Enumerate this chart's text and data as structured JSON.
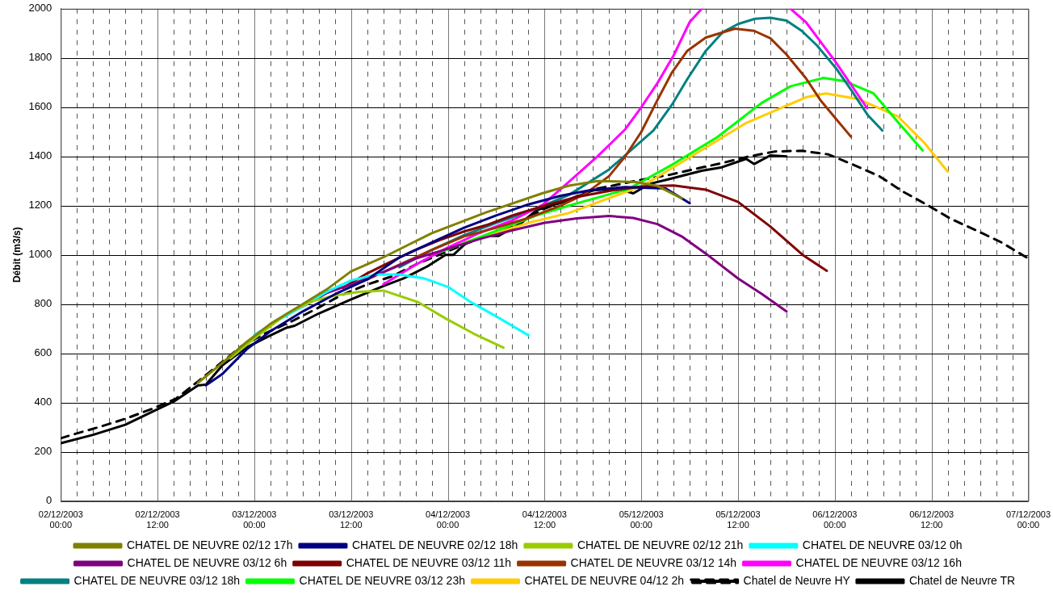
{
  "chart_data": {
    "type": "line",
    "ylabel": "Débit (m3/s)",
    "xlim": [
      "2003-12-02T00:00",
      "2003-12-07T00:00"
    ],
    "ylim": [
      0,
      2000
    ],
    "xticks": [
      {
        "value": "2003-12-02T00:00",
        "label": "02/12/2003 00:00"
      },
      {
        "value": "2003-12-02T02:00",
        "label": null
      },
      {
        "value": "2003-12-02T04:00",
        "label": null
      },
      {
        "value": "2003-12-02T06:00",
        "label": null
      },
      {
        "value": "2003-12-02T08:00",
        "label": null
      },
      {
        "value": "2003-12-02T10:00",
        "label": null
      },
      {
        "value": "2003-12-02T12:00",
        "label": "02/12/2003 12:00"
      },
      {
        "value": "2003-12-02T14:00",
        "label": null
      },
      {
        "value": "2003-12-02T16:00",
        "label": null
      },
      {
        "value": "2003-12-02T18:00",
        "label": null
      },
      {
        "value": "2003-12-02T20:00",
        "label": null
      },
      {
        "value": "2003-12-02T22:00",
        "label": null
      },
      {
        "value": "2003-12-03T00:00",
        "label": "03/12/2003 00:00"
      },
      {
        "value": "2003-12-03T02:00",
        "label": null
      },
      {
        "value": "2003-12-03T04:00",
        "label": null
      },
      {
        "value": "2003-12-03T06:00",
        "label": null
      },
      {
        "value": "2003-12-03T08:00",
        "label": null
      },
      {
        "value": "2003-12-03T10:00",
        "label": null
      },
      {
        "value": "2003-12-03T12:00",
        "label": "03/12/2003 12:00"
      },
      {
        "value": "2003-12-03T14:00",
        "label": null
      },
      {
        "value": "2003-12-03T16:00",
        "label": null
      },
      {
        "value": "2003-12-03T18:00",
        "label": null
      },
      {
        "value": "2003-12-03T20:00",
        "label": null
      },
      {
        "value": "2003-12-03T22:00",
        "label": null
      },
      {
        "value": "2003-12-04T00:00",
        "label": "04/12/2003 00:00"
      },
      {
        "value": "2003-12-04T02:00",
        "label": null
      },
      {
        "value": "2003-12-04T04:00",
        "label": null
      },
      {
        "value": "2003-12-04T06:00",
        "label": null
      },
      {
        "value": "2003-12-04T08:00",
        "label": null
      },
      {
        "value": "2003-12-04T10:00",
        "label": null
      },
      {
        "value": "2003-12-04T12:00",
        "label": "04/12/2003 12:00"
      },
      {
        "value": "2003-12-04T14:00",
        "label": null
      },
      {
        "value": "2003-12-04T16:00",
        "label": null
      },
      {
        "value": "2003-12-04T18:00",
        "label": null
      },
      {
        "value": "2003-12-04T20:00",
        "label": null
      },
      {
        "value": "2003-12-04T22:00",
        "label": null
      },
      {
        "value": "2003-12-05T00:00",
        "label": "05/12/2003 00:00"
      },
      {
        "value": "2003-12-05T02:00",
        "label": null
      },
      {
        "value": "2003-12-05T04:00",
        "label": null
      },
      {
        "value": "2003-12-05T06:00",
        "label": null
      },
      {
        "value": "2003-12-05T08:00",
        "label": null
      },
      {
        "value": "2003-12-05T10:00",
        "label": null
      },
      {
        "value": "2003-12-05T12:00",
        "label": "05/12/2003 12:00"
      },
      {
        "value": "2003-12-05T14:00",
        "label": null
      },
      {
        "value": "2003-12-05T16:00",
        "label": null
      },
      {
        "value": "2003-12-05T18:00",
        "label": null
      },
      {
        "value": "2003-12-05T20:00",
        "label": null
      },
      {
        "value": "2003-12-05T22:00",
        "label": null
      },
      {
        "value": "2003-12-06T00:00",
        "label": "06/12/2003 00:00"
      },
      {
        "value": "2003-12-06T02:00",
        "label": null
      },
      {
        "value": "2003-12-06T04:00",
        "label": null
      },
      {
        "value": "2003-12-06T06:00",
        "label": null
      },
      {
        "value": "2003-12-06T08:00",
        "label": null
      },
      {
        "value": "2003-12-06T10:00",
        "label": null
      },
      {
        "value": "2003-12-06T12:00",
        "label": "06/12/2003 12:00"
      },
      {
        "value": "2003-12-06T14:00",
        "label": null
      },
      {
        "value": "2003-12-06T16:00",
        "label": null
      },
      {
        "value": "2003-12-06T18:00",
        "label": null
      },
      {
        "value": "2003-12-06T20:00",
        "label": null
      },
      {
        "value": "2003-12-06T22:00",
        "label": null
      },
      {
        "value": "2003-12-07T00:00",
        "label": "07/12/2003 00:00"
      }
    ],
    "yticks": [
      0,
      200,
      400,
      600,
      800,
      1000,
      1200,
      1400,
      1600,
      1800,
      2000
    ],
    "grid": true,
    "legend": "bottom",
    "series": [
      {
        "name": "CHATEL DE NEUVRE 02/12 17h",
        "color": "#808000",
        "x": [
          "2003-12-02T17:00",
          "2003-12-02T20:00",
          "2003-12-02T23:00",
          "2003-12-03T02:00",
          "2003-12-03T06:00",
          "2003-12-03T09:00",
          "2003-12-03T12:00",
          "2003-12-03T16:00",
          "2003-12-03T22:00",
          "2003-12-04T04:48",
          "2003-12-04T11:42",
          "2003-12-04T15:00",
          "2003-12-04T18:36",
          "2003-12-04T23:18",
          "2003-12-05T02:00",
          "2003-12-05T05:00"
        ],
        "values": [
          480,
          560,
          645,
          720,
          800,
          860,
          933,
          990,
          1088,
          1173,
          1250,
          1281,
          1300,
          1296,
          1280,
          1230
        ]
      },
      {
        "name": "CHATEL DE NEUVRE 02/12 18h",
        "color": "#000080",
        "x": [
          "2003-12-02T18:00",
          "2003-12-02T20:00",
          "2003-12-02T23:00",
          "2003-12-03T02:00",
          "2003-12-03T06:00",
          "2003-12-03T10:00",
          "2003-12-03T14:00",
          "2003-12-03T18:00",
          "2003-12-03T22:00",
          "2003-12-04T02:00",
          "2003-12-04T06:00",
          "2003-12-04T10:00",
          "2003-12-04T14:00",
          "2003-12-04T18:00",
          "2003-12-04T22:00",
          "2003-12-05T03:00",
          "2003-12-05T06:00"
        ],
        "values": [
          470,
          515,
          615,
          690,
          770,
          840,
          900,
          990,
          1050,
          1110,
          1160,
          1205,
          1240,
          1265,
          1275,
          1270,
          1210
        ]
      },
      {
        "name": "CHATEL DE NEUVRE 02/12 21h",
        "color": "#99cc00",
        "x": [
          "2003-12-02T21:00",
          "2003-12-03T00:00",
          "2003-12-03T04:00",
          "2003-12-03T07:00",
          "2003-12-03T10:00",
          "2003-12-03T13:00",
          "2003-12-03T16:00",
          "2003-12-03T20:18",
          "2003-12-03T23:42",
          "2003-12-04T03:12",
          "2003-12-04T06:54"
        ],
        "values": [
          580,
          660,
          760,
          810,
          835,
          850,
          855,
          808,
          742,
          680,
          623
        ]
      },
      {
        "name": "CHATEL DE NEUVRE 03/12 0h",
        "color": "#00ffff",
        "x": [
          "2003-12-03T00:00",
          "2003-12-03T03:00",
          "2003-12-03T06:00",
          "2003-12-03T09:00",
          "2003-12-03T12:00",
          "2003-12-03T15:00",
          "2003-12-03T18:00",
          "2003-12-03T21:00",
          "2003-12-04T00:00",
          "2003-12-04T03:00",
          "2003-12-04T06:00",
          "2003-12-04T10:00"
        ],
        "values": [
          675,
          735,
          790,
          850,
          896,
          920,
          920,
          905,
          870,
          805,
          750,
          673
        ]
      },
      {
        "name": "CHATEL DE NEUVRE 03/12 6h",
        "color": "#800080",
        "x": [
          "2003-12-03T06:00",
          "2003-12-03T09:00",
          "2003-12-03T12:00",
          "2003-12-03T16:00",
          "2003-12-03T20:00",
          "2003-12-04T00:00",
          "2003-12-04T04:00",
          "2003-12-04T08:00",
          "2003-12-04T12:00",
          "2003-12-04T16:00",
          "2003-12-04T20:00",
          "2003-12-04T23:00",
          "2003-12-05T02:00",
          "2003-12-05T05:00",
          "2003-12-05T08:00",
          "2003-12-05T12:00",
          "2003-12-05T15:00",
          "2003-12-05T18:00"
        ],
        "values": [
          790,
          845,
          880,
          930,
          985,
          1025,
          1065,
          1100,
          1130,
          1148,
          1158,
          1150,
          1125,
          1075,
          1005,
          904,
          840,
          770
        ]
      },
      {
        "name": "CHATEL DE NEUVRE 03/12 11h",
        "color": "#800000",
        "x": [
          "2003-12-03T11:00",
          "2003-12-03T14:00",
          "2003-12-03T17:00",
          "2003-12-03T20:00",
          "2003-12-03T23:00",
          "2003-12-04T02:00",
          "2003-12-04T05:00",
          "2003-12-04T08:00",
          "2003-12-04T12:00",
          "2003-12-04T16:00",
          "2003-12-04T20:00",
          "2003-12-05T00:00",
          "2003-12-05T04:00",
          "2003-12-05T08:00",
          "2003-12-05T12:00",
          "2003-12-05T16:00",
          "2003-12-05T20:00",
          "2003-12-05T23:00"
        ],
        "values": [
          866,
          925,
          973,
          1020,
          1060,
          1095,
          1123,
          1160,
          1200,
          1235,
          1260,
          1278,
          1282,
          1265,
          1215,
          1115,
          1000,
          935
        ]
      },
      {
        "name": "CHATEL DE NEUVRE 03/12 14h",
        "color": "#993300",
        "x": [
          "2003-12-03T14:00",
          "2003-12-03T18:00",
          "2003-12-03T22:00",
          "2003-12-04T02:00",
          "2003-12-04T06:00",
          "2003-12-04T10:00",
          "2003-12-04T14:00",
          "2003-12-04T17:00",
          "2003-12-04T20:00",
          "2003-12-04T22:00",
          "2003-12-05T00:00",
          "2003-12-05T02:00",
          "2003-12-05T03:48",
          "2003-12-05T05:42",
          "2003-12-05T08:00",
          "2003-12-05T11:36",
          "2003-12-05T14:00",
          "2003-12-05T16:00",
          "2003-12-05T18:00",
          "2003-12-05T20:24",
          "2003-12-05T22:12",
          "2003-12-06T00:06",
          "2003-12-06T02:00"
        ],
        "values": [
          900,
          960,
          1020,
          1075,
          1110,
          1150,
          1200,
          1247,
          1320,
          1400,
          1500,
          1629,
          1741,
          1829,
          1883,
          1919,
          1910,
          1880,
          1814,
          1718,
          1629,
          1554,
          1480
        ]
      },
      {
        "name": "CHATEL DE NEUVRE 03/12 16h",
        "color": "#ff00ff",
        "x": [
          "2003-12-03T16:00",
          "2003-12-03T20:00",
          "2003-12-04T00:00",
          "2003-12-04T04:00",
          "2003-12-04T08:00",
          "2003-12-04T11:48",
          "2003-12-04T15:00",
          "2003-12-04T18:36",
          "2003-12-04T22:00",
          "2003-12-05T00:00",
          "2003-12-05T02:00",
          "2003-12-05T04:00",
          "2003-12-05T06:00",
          "2003-12-05T07:30",
          "2003-12-05T10:00",
          "2003-12-05T13:00",
          "2003-12-05T16:00",
          "2003-12-05T18:30",
          "2003-12-05T20:24",
          "2003-12-06T00:00",
          "2003-12-06T04:00"
        ],
        "values": [
          880,
          960,
          1030,
          1090,
          1140,
          1204,
          1296,
          1401,
          1510,
          1600,
          1698,
          1810,
          1946,
          2000,
          null,
          null,
          null,
          2000,
          1946,
          1788,
          1596
        ]
      },
      {
        "name": "CHATEL DE NEUVRE 03/12 18h",
        "color": "#008080",
        "x": [
          "2003-12-03T18:00",
          "2003-12-03T22:00",
          "2003-12-04T02:00",
          "2003-12-04T06:00",
          "2003-12-04T10:00",
          "2003-12-04T15:00",
          "2003-12-04T20:00",
          "2003-12-05T01:30",
          "2003-12-05T03:48",
          "2003-12-05T05:42",
          "2003-12-05T08:00",
          "2003-12-05T10:06",
          "2003-12-05T12:00",
          "2003-12-05T14:06",
          "2003-12-05T16:00",
          "2003-12-05T18:00",
          "2003-12-05T19:54",
          "2003-12-05T21:48",
          "2003-12-06T00:06",
          "2003-12-06T02:00",
          "2003-12-06T04:06",
          "2003-12-06T05:54"
        ],
        "values": [
          950,
          1020,
          1080,
          1130,
          1175,
          1243,
          1347,
          1505,
          1610,
          1714,
          1829,
          1905,
          1938,
          1959,
          1963,
          1952,
          1910,
          1850,
          1760,
          1671,
          1567,
          1505
        ]
      },
      {
        "name": "CHATEL DE NEUVRE 03/12 23h",
        "color": "#00ff00",
        "x": [
          "2003-12-03T23:00",
          "2003-12-04T03:00",
          "2003-12-04T07:00",
          "2003-12-04T11:00",
          "2003-12-04T15:00",
          "2003-12-04T22:24",
          "2003-12-05T03:48",
          "2003-12-05T09:24",
          "2003-12-05T14:54",
          "2003-12-05T18:30",
          "2003-12-05T22:36",
          "2003-12-06T01:12",
          "2003-12-06T04:48",
          "2003-12-06T07:48",
          "2003-12-06T10:54"
        ],
        "values": [
          1010,
          1060,
          1110,
          1160,
          1200,
          1268,
          1366,
          1478,
          1617,
          1685,
          1719,
          1706,
          1656,
          1540,
          1424
        ]
      },
      {
        "name": "CHATEL DE NEUVRE 04/12 2h",
        "color": "#ffcc00",
        "x": [
          "2003-12-04T02:00",
          "2003-12-04T06:00",
          "2003-12-04T10:00",
          "2003-12-04T15:00",
          "2003-12-05T00:12",
          "2003-12-05T05:42",
          "2003-12-05T13:00",
          "2003-12-05T20:24",
          "2003-12-05T22:54",
          "2003-12-06T02:54",
          "2003-12-06T07:48",
          "2003-12-06T11:06",
          "2003-12-06T14:00"
        ],
        "values": [
          1050,
          1090,
          1130,
          1170,
          1281,
          1390,
          1536,
          1640,
          1656,
          1633,
          1563,
          1455,
          1338
        ]
      },
      {
        "name": "Chatel de Neuvre HY",
        "color": "#000000",
        "line_style": "dashed",
        "x": [
          "2003-12-02T00:00",
          "2003-12-02T01:24",
          "2003-12-02T04:42",
          "2003-12-02T08:00",
          "2003-12-02T11:12",
          "2003-12-02T14:18",
          "2003-12-02T17:06",
          "2003-12-02T19:54",
          "2003-12-02T22:30",
          "2003-12-03T01:36",
          "2003-12-03T04:42",
          "2003-12-03T07:42",
          "2003-12-03T10:42",
          "2003-12-03T13:48",
          "2003-12-03T17:00",
          "2003-12-03T20:06",
          "2003-12-03T23:12",
          "2003-12-04T02:18",
          "2003-12-04T05:36",
          "2003-12-04T08:42",
          "2003-12-04T11:48",
          "2003-12-04T14:54",
          "2003-12-04T18:00",
          "2003-12-04T21:00",
          "2003-12-05T00:00",
          "2003-12-05T03:30",
          "2003-12-05T06:48",
          "2003-12-05T10:00",
          "2003-12-05T13:24",
          "2003-12-05T16:36",
          "2003-12-05T19:54",
          "2003-12-05T23:12",
          "2003-12-06T02:18",
          "2003-12-06T05:30",
          "2003-12-06T08:24",
          "2003-12-06T11:24",
          "2003-12-06T14:24",
          "2003-12-06T17:30",
          "2003-12-06T20:42",
          "2003-12-07T00:00"
        ],
        "values": [
          255,
          269,
          300,
          334,
          373,
          416,
          488,
          562,
          631,
          685,
          731,
          781,
          835,
          877,
          912,
          962,
          1004,
          1046,
          1088,
          1127,
          1185,
          1223,
          1266,
          1285,
          1305,
          1325,
          1350,
          1373,
          1400,
          1420,
          1423,
          1408,
          1366,
          1320,
          1258,
          1204,
          1146,
          1100,
          1050,
          985
        ]
      },
      {
        "name": "Chatel de Neuvre TR",
        "color": "#000000",
        "x": [
          "2003-12-02T00:00",
          "2003-12-02T04:00",
          "2003-12-02T08:00",
          "2003-12-02T12:00",
          "2003-12-02T14:00",
          "2003-12-02T17:00",
          "2003-12-02T18:00",
          "2003-12-02T20:00",
          "2003-12-02T23:00",
          "2003-12-03T01:30",
          "2003-12-03T04:00",
          "2003-12-03T05:00",
          "2003-12-03T08:00",
          "2003-12-03T12:00",
          "2003-12-03T16:00",
          "2003-12-03T18:30",
          "2003-12-03T21:30",
          "2003-12-03T23:42",
          "2003-12-04T00:42",
          "2003-12-04T02:12",
          "2003-12-04T04:48",
          "2003-12-04T06:18",
          "2003-12-04T09:00",
          "2003-12-04T11:00",
          "2003-12-04T12:00",
          "2003-12-04T15:00",
          "2003-12-04T18:00",
          "2003-12-04T21:00",
          "2003-12-04T23:00",
          "2003-12-05T01:00",
          "2003-12-05T03:30",
          "2003-12-05T07:30",
          "2003-12-05T10:00",
          "2003-12-05T13:00",
          "2003-12-05T14:00",
          "2003-12-05T16:00",
          "2003-12-05T18:00"
        ],
        "values": [
          235,
          269,
          310,
          373,
          404,
          469,
          473,
          550,
          623,
          665,
          704,
          712,
          762,
          819,
          873,
          904,
          954,
          1000,
          1000,
          1046,
          1077,
          1077,
          1127,
          1181,
          1192,
          1223,
          1262,
          1269,
          1250,
          1288,
          1308,
          1342,
          1356,
          1390,
          1369,
          1404,
          1400
        ]
      }
    ]
  }
}
